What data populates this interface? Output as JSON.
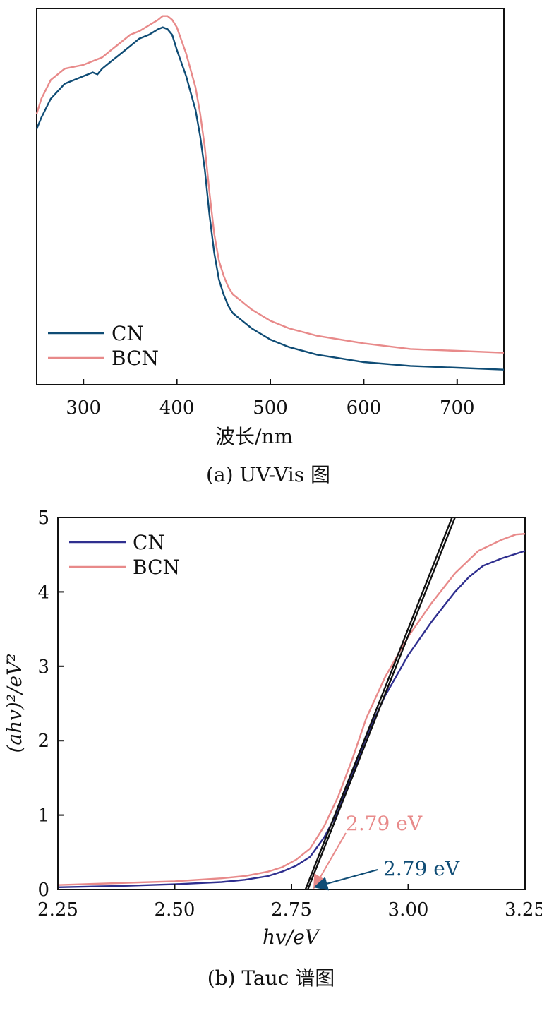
{
  "colors": {
    "cn_top": "#0f4c75",
    "cn_bottom": "#2f2f8f",
    "bcn": "#e88a8a",
    "fit": "#111111"
  },
  "chart_data": [
    {
      "type": "line",
      "title": "",
      "xlabel": "波长/nm",
      "ylabel": "",
      "xlim": [
        250,
        750
      ],
      "ylim": [
        0,
        1
      ],
      "x_ticks": [
        300,
        400,
        500,
        600,
        700
      ],
      "x_tick_labels": [
        "300",
        "400",
        "500",
        "600",
        "700"
      ],
      "legend_position": "bottom-left",
      "caption": "(a) UV-Vis 图",
      "series": [
        {
          "name": "CN",
          "x": [
            250,
            255,
            265,
            280,
            300,
            310,
            315,
            320,
            330,
            340,
            350,
            360,
            370,
            380,
            385,
            390,
            395,
            400,
            410,
            420,
            425,
            430,
            435,
            440,
            445,
            450,
            455,
            460,
            470,
            480,
            500,
            520,
            550,
            600,
            650,
            700,
            750
          ],
          "y": [
            0.68,
            0.71,
            0.76,
            0.8,
            0.82,
            0.83,
            0.825,
            0.84,
            0.86,
            0.88,
            0.9,
            0.92,
            0.93,
            0.945,
            0.95,
            0.945,
            0.93,
            0.89,
            0.82,
            0.73,
            0.66,
            0.57,
            0.45,
            0.35,
            0.28,
            0.24,
            0.21,
            0.19,
            0.17,
            0.15,
            0.12,
            0.1,
            0.08,
            0.06,
            0.05,
            0.045,
            0.04
          ]
        },
        {
          "name": "BCN",
          "x": [
            250,
            255,
            265,
            280,
            300,
            310,
            320,
            330,
            340,
            350,
            360,
            370,
            380,
            385,
            390,
            395,
            400,
            410,
            420,
            425,
            430,
            435,
            440,
            445,
            450,
            455,
            460,
            470,
            480,
            500,
            520,
            550,
            600,
            650,
            700,
            750
          ],
          "y": [
            0.72,
            0.76,
            0.81,
            0.84,
            0.85,
            0.86,
            0.87,
            0.89,
            0.91,
            0.93,
            0.94,
            0.955,
            0.97,
            0.98,
            0.98,
            0.97,
            0.95,
            0.88,
            0.79,
            0.72,
            0.63,
            0.51,
            0.4,
            0.33,
            0.29,
            0.26,
            0.24,
            0.22,
            0.2,
            0.17,
            0.15,
            0.13,
            0.11,
            0.095,
            0.09,
            0.085
          ]
        }
      ]
    },
    {
      "type": "line",
      "title": "",
      "xlabel": "hv/eV",
      "ylabel": "(ahv)²/eV²",
      "xlim": [
        2.25,
        3.25
      ],
      "ylim": [
        0,
        5
      ],
      "x_ticks": [
        2.25,
        2.5,
        2.75,
        3.0,
        3.25
      ],
      "x_tick_labels": [
        "2.25",
        "2.50",
        "2.75",
        "3.00",
        "3.25"
      ],
      "y_ticks": [
        0,
        1,
        2,
        3,
        4,
        5
      ],
      "y_tick_labels": [
        "0",
        "1",
        "2",
        "3",
        "4",
        "5"
      ],
      "legend_position": "top-left",
      "caption": "(b) Tauc 谱图",
      "series": [
        {
          "name": "CN",
          "x": [
            2.25,
            2.4,
            2.5,
            2.6,
            2.65,
            2.7,
            2.73,
            2.76,
            2.79,
            2.82,
            2.85,
            2.88,
            2.91,
            2.95,
            3.0,
            3.05,
            3.1,
            3.13,
            3.16,
            3.2,
            3.25
          ],
          "y": [
            0.03,
            0.05,
            0.07,
            0.1,
            0.13,
            0.18,
            0.24,
            0.32,
            0.44,
            0.7,
            1.05,
            1.55,
            2.05,
            2.6,
            3.15,
            3.6,
            4.0,
            4.2,
            4.35,
            4.45,
            4.55
          ]
        },
        {
          "name": "BCN",
          "x": [
            2.25,
            2.4,
            2.5,
            2.6,
            2.65,
            2.7,
            2.73,
            2.76,
            2.79,
            2.82,
            2.85,
            2.88,
            2.91,
            2.95,
            3.0,
            3.05,
            3.1,
            3.15,
            3.2,
            3.23,
            3.25
          ],
          "y": [
            0.06,
            0.09,
            0.11,
            0.15,
            0.18,
            0.24,
            0.3,
            0.4,
            0.55,
            0.85,
            1.25,
            1.75,
            2.3,
            2.85,
            3.4,
            3.85,
            4.25,
            4.55,
            4.7,
            4.77,
            4.78
          ]
        }
      ],
      "fit_lines": [
        {
          "x": [
            2.78,
            3.1
          ],
          "y": [
            0,
            5.1
          ]
        },
        {
          "x": [
            2.785,
            3.1
          ],
          "y": [
            0,
            5.0
          ]
        }
      ],
      "annotations": [
        {
          "text": "2.79 eV",
          "series": "BCN",
          "at_x": 2.79,
          "at_y": 0
        },
        {
          "text": "2.79 eV",
          "series": "CN",
          "at_x": 2.79,
          "at_y": 0
        }
      ]
    }
  ]
}
